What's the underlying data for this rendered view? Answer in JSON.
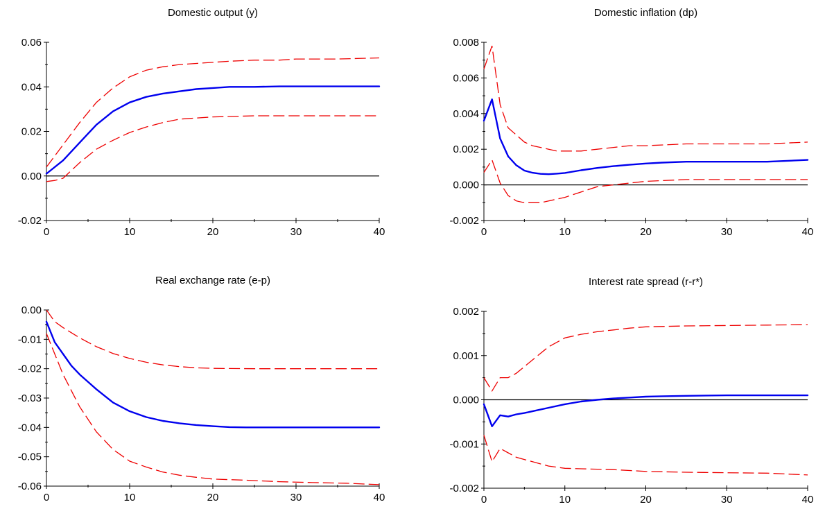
{
  "colors": {
    "median": "#0000ee",
    "band": "#ee0000",
    "axis": "#000000"
  },
  "chart_data": [
    {
      "type": "line",
      "title": "Domestic output (y)",
      "xlabel": "",
      "ylabel": "",
      "xlim": [
        0,
        40
      ],
      "ylim": [
        -0.02,
        0.06
      ],
      "xticks": [
        0,
        10,
        20,
        30,
        40
      ],
      "xtick_labels": [
        "0",
        "10",
        "20",
        "30",
        "40"
      ],
      "yticks": [
        -0.02,
        0.0,
        0.02,
        0.04,
        0.06
      ],
      "ytick_labels": [
        "-0.02",
        "0.00",
        "0.02",
        "0.04",
        "0.06"
      ],
      "grid": false,
      "zero_line": true,
      "series": [
        {
          "role": "median",
          "x": [
            0,
            2,
            4,
            6,
            8,
            10,
            12,
            14,
            16,
            18,
            20,
            22,
            25,
            28,
            30,
            35,
            40
          ],
          "y": [
            0.001,
            0.007,
            0.015,
            0.023,
            0.029,
            0.033,
            0.0355,
            0.037,
            0.038,
            0.039,
            0.0395,
            0.04,
            0.04,
            0.0402,
            0.0402,
            0.0402,
            0.0402
          ]
        },
        {
          "role": "upper",
          "x": [
            0,
            2,
            4,
            6,
            8,
            10,
            12,
            14,
            16,
            18,
            20,
            22,
            25,
            28,
            30,
            35,
            40
          ],
          "y": [
            0.004,
            0.014,
            0.024,
            0.033,
            0.0395,
            0.0445,
            0.0475,
            0.049,
            0.05,
            0.0505,
            0.051,
            0.0515,
            0.052,
            0.052,
            0.0525,
            0.0525,
            0.053
          ]
        },
        {
          "role": "lower",
          "x": [
            0,
            1,
            2,
            4,
            6,
            8,
            10,
            12,
            14,
            16,
            18,
            20,
            25,
            30,
            35,
            40
          ],
          "y": [
            -0.0025,
            -0.002,
            -0.001,
            0.006,
            0.012,
            0.016,
            0.0195,
            0.022,
            0.024,
            0.0255,
            0.026,
            0.0265,
            0.027,
            0.027,
            0.027,
            0.027
          ]
        }
      ]
    },
    {
      "type": "line",
      "title": "Domestic inflation (dp)",
      "xlabel": "",
      "ylabel": "",
      "xlim": [
        0,
        40
      ],
      "ylim": [
        -0.002,
        0.008
      ],
      "xticks": [
        0,
        10,
        20,
        30,
        40
      ],
      "xtick_labels": [
        "0",
        "10",
        "20",
        "30",
        "40"
      ],
      "yticks": [
        -0.002,
        0.0,
        0.002,
        0.004,
        0.006,
        0.008
      ],
      "ytick_labels": [
        "-0.002",
        "0.000",
        "0.002",
        "0.004",
        "0.006",
        "0.008"
      ],
      "grid": false,
      "zero_line": true,
      "series": [
        {
          "role": "median",
          "x": [
            0,
            1,
            2,
            3,
            4,
            5,
            6,
            7,
            8,
            9,
            10,
            12,
            14,
            16,
            18,
            20,
            22,
            25,
            30,
            35,
            40
          ],
          "y": [
            0.0036,
            0.0048,
            0.0026,
            0.0016,
            0.0011,
            0.0008,
            0.00068,
            0.00062,
            0.0006,
            0.00063,
            0.00067,
            0.00082,
            0.00095,
            0.00105,
            0.00113,
            0.0012,
            0.00125,
            0.0013,
            0.0013,
            0.0013,
            0.0014
          ]
        },
        {
          "role": "upper",
          "x": [
            0,
            1,
            2,
            3,
            4,
            5,
            6,
            7,
            8,
            9,
            10,
            12,
            14,
            16,
            18,
            20,
            25,
            30,
            35,
            40
          ],
          "y": [
            0.0065,
            0.0078,
            0.0045,
            0.0032,
            0.0028,
            0.0024,
            0.0022,
            0.0021,
            0.002,
            0.0019,
            0.0019,
            0.0019,
            0.002,
            0.0021,
            0.0022,
            0.0022,
            0.0023,
            0.0023,
            0.0023,
            0.0024
          ]
        },
        {
          "role": "lower",
          "x": [
            0,
            1,
            2,
            3,
            4,
            5,
            6,
            7,
            8,
            9,
            10,
            12,
            14,
            16,
            18,
            20,
            25,
            30,
            35,
            40
          ],
          "y": [
            0.0007,
            0.0014,
            0.0001,
            -0.0006,
            -0.0009,
            -0.001,
            -0.001,
            -0.001,
            -0.0009,
            -0.0008,
            -0.0007,
            -0.0004,
            -0.0001,
            0.0,
            0.0001,
            0.0002,
            0.0003,
            0.0003,
            0.0003,
            0.0003
          ]
        }
      ]
    },
    {
      "type": "line",
      "title": "Real exchange rate (e-p)",
      "xlabel": "",
      "ylabel": "",
      "xlim": [
        0,
        40
      ],
      "ylim": [
        -0.06,
        0.0
      ],
      "xticks": [
        0,
        10,
        20,
        30,
        40
      ],
      "xtick_labels": [
        "0",
        "10",
        "20",
        "30",
        "40"
      ],
      "yticks": [
        -0.06,
        -0.05,
        -0.04,
        -0.03,
        -0.02,
        -0.01,
        0.0
      ],
      "ytick_labels": [
        "-0.06",
        "-0.05",
        "-0.04",
        "-0.03",
        "-0.02",
        "-0.01",
        "0.00"
      ],
      "grid": false,
      "zero_line": true,
      "series": [
        {
          "role": "median",
          "x": [
            0,
            1,
            2,
            3,
            4,
            6,
            8,
            10,
            12,
            14,
            16,
            18,
            20,
            22,
            24,
            26,
            30,
            35,
            40
          ],
          "y": [
            -0.004,
            -0.011,
            -0.015,
            -0.019,
            -0.022,
            -0.027,
            -0.0315,
            -0.0345,
            -0.0365,
            -0.0378,
            -0.0386,
            -0.0392,
            -0.0396,
            -0.0399,
            -0.04,
            -0.04,
            -0.04,
            -0.04,
            -0.04
          ]
        },
        {
          "role": "upper",
          "x": [
            0,
            1,
            2,
            4,
            6,
            8,
            10,
            12,
            14,
            16,
            18,
            20,
            25,
            30,
            35,
            40
          ],
          "y": [
            0.0,
            -0.004,
            -0.006,
            -0.0095,
            -0.0125,
            -0.0148,
            -0.0165,
            -0.0178,
            -0.0187,
            -0.0193,
            -0.0197,
            -0.0199,
            -0.02,
            -0.02,
            -0.02,
            -0.02
          ]
        },
        {
          "role": "lower",
          "x": [
            0,
            1,
            2,
            4,
            6,
            8,
            10,
            12,
            14,
            16,
            18,
            20,
            24,
            28,
            32,
            36,
            40
          ],
          "y": [
            -0.008,
            -0.015,
            -0.022,
            -0.033,
            -0.0415,
            -0.0475,
            -0.0515,
            -0.0535,
            -0.0552,
            -0.0563,
            -0.057,
            -0.0576,
            -0.058,
            -0.0585,
            -0.0588,
            -0.059,
            -0.0595
          ]
        }
      ]
    },
    {
      "type": "line",
      "title": "Interest rate spread (r-r*)",
      "xlabel": "",
      "ylabel": "",
      "xlim": [
        0,
        40
      ],
      "ylim": [
        -0.002,
        0.002
      ],
      "xticks": [
        0,
        10,
        20,
        30,
        40
      ],
      "xtick_labels": [
        "0",
        "10",
        "20",
        "30",
        "40"
      ],
      "yticks": [
        -0.002,
        -0.001,
        0.0,
        0.001,
        0.002
      ],
      "ytick_labels": [
        "-0.002",
        "-0.001",
        "0.000",
        "0.001",
        "0.002"
      ],
      "grid": false,
      "zero_line": true,
      "series": [
        {
          "role": "median",
          "x": [
            0,
            1,
            2,
            3,
            4,
            5,
            6,
            8,
            10,
            12,
            14,
            16,
            18,
            20,
            22,
            25,
            30,
            35,
            40
          ],
          "y": [
            -0.0001,
            -0.0006,
            -0.00035,
            -0.00038,
            -0.00033,
            -0.0003,
            -0.00026,
            -0.00018,
            -0.0001,
            -4e-05,
            0.0,
            3e-05,
            5e-05,
            7e-05,
            8e-05,
            9e-05,
            0.0001,
            0.0001,
            0.0001
          ]
        },
        {
          "role": "upper",
          "x": [
            0,
            1,
            2,
            3,
            4,
            6,
            8,
            10,
            12,
            14,
            16,
            18,
            20,
            25,
            30,
            35,
            40
          ],
          "y": [
            0.0005,
            0.0002,
            0.0005,
            0.0005,
            0.0006,
            0.0009,
            0.0012,
            0.0014,
            0.00148,
            0.00154,
            0.00158,
            0.00162,
            0.00165,
            0.00167,
            0.00168,
            0.00169,
            0.0017
          ]
        },
        {
          "role": "lower",
          "x": [
            0,
            1,
            2,
            3,
            4,
            6,
            8,
            10,
            12,
            14,
            16,
            18,
            20,
            25,
            30,
            35,
            40
          ],
          "y": [
            -0.0008,
            -0.0014,
            -0.0011,
            -0.0012,
            -0.0013,
            -0.0014,
            -0.0015,
            -0.00155,
            -0.00156,
            -0.00157,
            -0.00158,
            -0.0016,
            -0.00162,
            -0.00164,
            -0.00165,
            -0.00166,
            -0.0017
          ]
        }
      ]
    }
  ]
}
